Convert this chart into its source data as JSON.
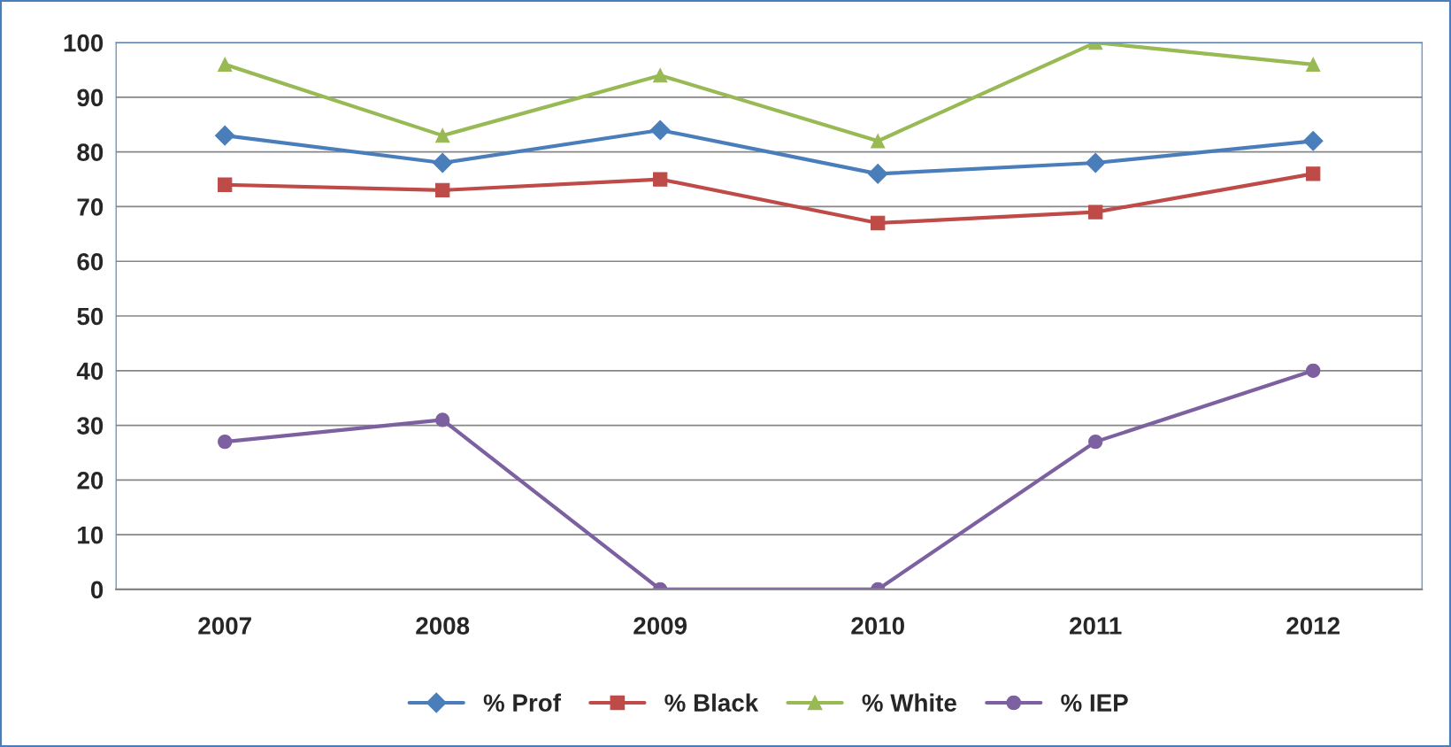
{
  "chart_data": {
    "type": "line",
    "categories": [
      "2007",
      "2008",
      "2009",
      "2010",
      "2011",
      "2012"
    ],
    "series": [
      {
        "name": "% Prof",
        "color": "#4a7ebb",
        "marker": "diamond",
        "values": [
          83,
          78,
          84,
          76,
          78,
          82
        ]
      },
      {
        "name": "% Black",
        "color": "#be4b48",
        "marker": "square",
        "values": [
          74,
          73,
          75,
          67,
          69,
          76
        ]
      },
      {
        "name": "% White",
        "color": "#98b954",
        "marker": "triangle",
        "values": [
          96,
          83,
          94,
          82,
          100,
          96
        ]
      },
      {
        "name": "% IEP",
        "color": "#7d60a0",
        "marker": "circle",
        "values": [
          27,
          31,
          0,
          0,
          27,
          40
        ]
      }
    ],
    "ylim": [
      0,
      100
    ],
    "yticks": [
      0,
      10,
      20,
      30,
      40,
      50,
      60,
      70,
      80,
      90,
      100
    ],
    "grid": "y",
    "legend": "bottom",
    "line_style": "solid"
  }
}
